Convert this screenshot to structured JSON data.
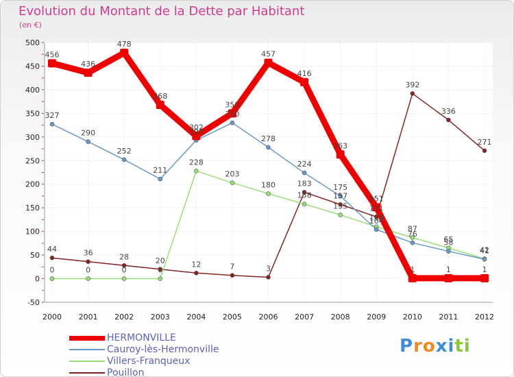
{
  "title": "Evolution du Montant de la Dette par Habitant",
  "subtitle": "(en €)",
  "logo": {
    "text": "Proxiti",
    "colors": [
      "#3a8fd8",
      "#f08a20",
      "#f08a20",
      "#3a8fd8",
      "#3a8fd8",
      "#8cc63f",
      "#8cc63f"
    ]
  },
  "chart_data": {
    "type": "line",
    "x": [
      "2000",
      "2001",
      "2002",
      "2003",
      "2004",
      "2005",
      "2006",
      "2007",
      "2008",
      "2009",
      "2010",
      "2011",
      "2012"
    ],
    "ylim": [
      -50,
      500
    ],
    "yticks": [
      "-50",
      "0",
      "50",
      "100",
      "150",
      "200",
      "250",
      "300",
      "350",
      "400",
      "450",
      "500"
    ],
    "grid": true,
    "legend_position": "bottom-left",
    "series": [
      {
        "name": "HERMONVILLE",
        "color": "#ee0000",
        "values": [
          456,
          436,
          478,
          368,
          302,
          350,
          457,
          416,
          263,
          151,
          1,
          1,
          1
        ],
        "labels": [
          "456",
          "436",
          "478",
          "368",
          "302",
          "350",
          "457",
          "416",
          "263",
          "151",
          "1",
          "1",
          "1"
        ]
      },
      {
        "name": "Cauroy-lès-Hermonville",
        "color": "#6699cc",
        "values": [
          327,
          290,
          252,
          211,
          293,
          330,
          278,
          224,
          175,
          104,
          76,
          58,
          41
        ],
        "labels": [
          "327",
          "290",
          "252",
          "211",
          "293",
          "330",
          "278",
          "224",
          "175",
          "104",
          "76",
          "58",
          "41"
        ]
      },
      {
        "name": "Villers-Franqueux",
        "color": "#99dd77",
        "values": [
          0,
          0,
          0,
          0,
          228,
          203,
          180,
          158,
          135,
          110,
          87,
          65,
          42
        ],
        "labels": [
          "0",
          "0",
          "0",
          "0",
          "228",
          "203",
          "180",
          "158",
          "135",
          "110",
          "87",
          "65",
          "42"
        ]
      },
      {
        "name": "Pouillon",
        "color": "#882222",
        "values": [
          44,
          36,
          28,
          20,
          12,
          7,
          3,
          183,
          157,
          131,
          392,
          336,
          271
        ],
        "labels": [
          "44",
          "36",
          "28",
          "20",
          "12",
          "7",
          "3",
          "183",
          "157",
          "131",
          "392",
          "336",
          "271"
        ]
      }
    ]
  }
}
